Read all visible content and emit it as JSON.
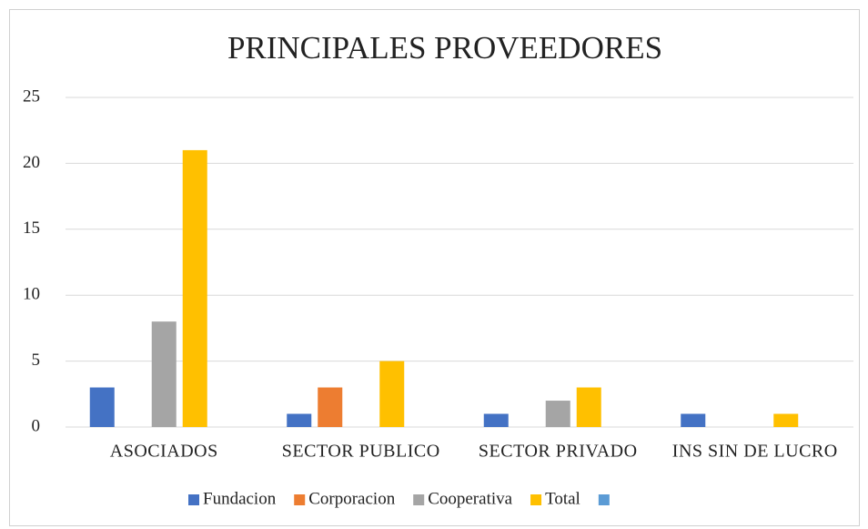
{
  "chart_data": {
    "type": "bar",
    "title": "PRINCIPALES PROVEEDORES",
    "categories": [
      "ASOCIADOS",
      "SECTOR PUBLICO",
      "SECTOR PRIVADO",
      "INS SIN DE LUCRO"
    ],
    "series": [
      {
        "name": "Fundacion",
        "color": "#4472c4",
        "values": [
          3,
          1,
          1,
          1
        ]
      },
      {
        "name": "Corporacion",
        "color": "#ed7d31",
        "values": [
          0,
          3,
          0,
          0
        ]
      },
      {
        "name": "Cooperativa",
        "color": "#a5a5a5",
        "values": [
          8,
          0,
          2,
          0
        ]
      },
      {
        "name": "Total",
        "color": "#ffc000",
        "values": [
          21,
          5,
          3,
          1
        ]
      },
      {
        "color": "#5b9bd5",
        "values": [
          0,
          0,
          0,
          0
        ]
      }
    ],
    "ylim": [
      0,
      25
    ],
    "yticks": [
      0,
      5,
      10,
      15,
      20,
      25
    ],
    "grid": true,
    "legend": "bottom"
  }
}
